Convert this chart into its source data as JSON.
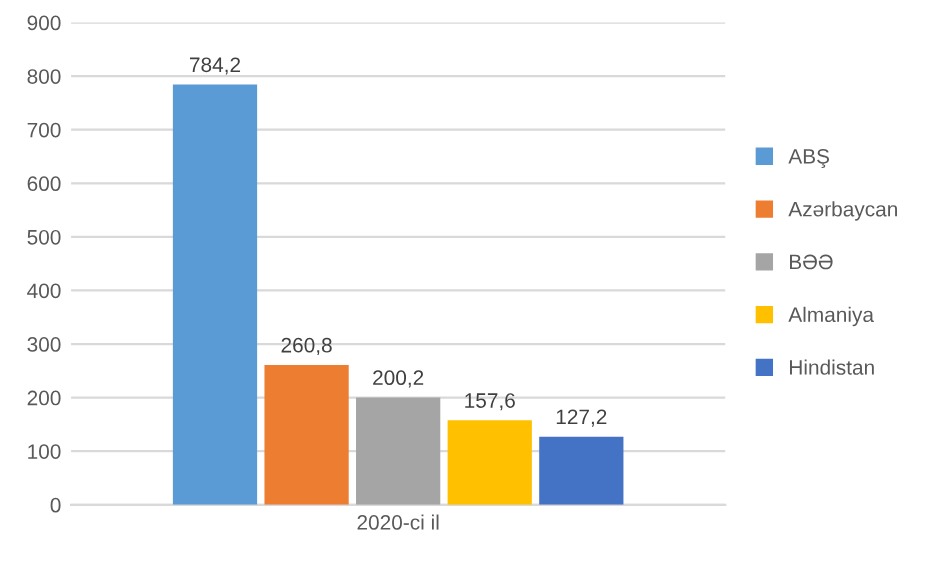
{
  "chart_data": {
    "type": "bar",
    "categories": [
      "2020-ci il"
    ],
    "series": [
      {
        "name": "ABŞ",
        "color": "#5b9bd5",
        "values": [
          784.2
        ],
        "value_labels": [
          "784,2"
        ]
      },
      {
        "name": "Azərbaycan",
        "color": "#ed7d31",
        "values": [
          260.8
        ],
        "value_labels": [
          "260,8"
        ]
      },
      {
        "name": "BƏƏ",
        "color": "#a5a5a5",
        "values": [
          200.2
        ],
        "value_labels": [
          "200,2"
        ]
      },
      {
        "name": "Almaniya",
        "color": "#ffc000",
        "values": [
          157.6
        ],
        "value_labels": [
          "157,6"
        ]
      },
      {
        "name": "Hindistan",
        "color": "#4472c4",
        "values": [
          127.2
        ],
        "value_labels": [
          "127,2"
        ]
      }
    ],
    "ylim": [
      0,
      900
    ],
    "yticks": [
      0,
      100,
      200,
      300,
      400,
      500,
      600,
      700,
      800,
      900
    ],
    "grid": "y",
    "legend": "right"
  }
}
